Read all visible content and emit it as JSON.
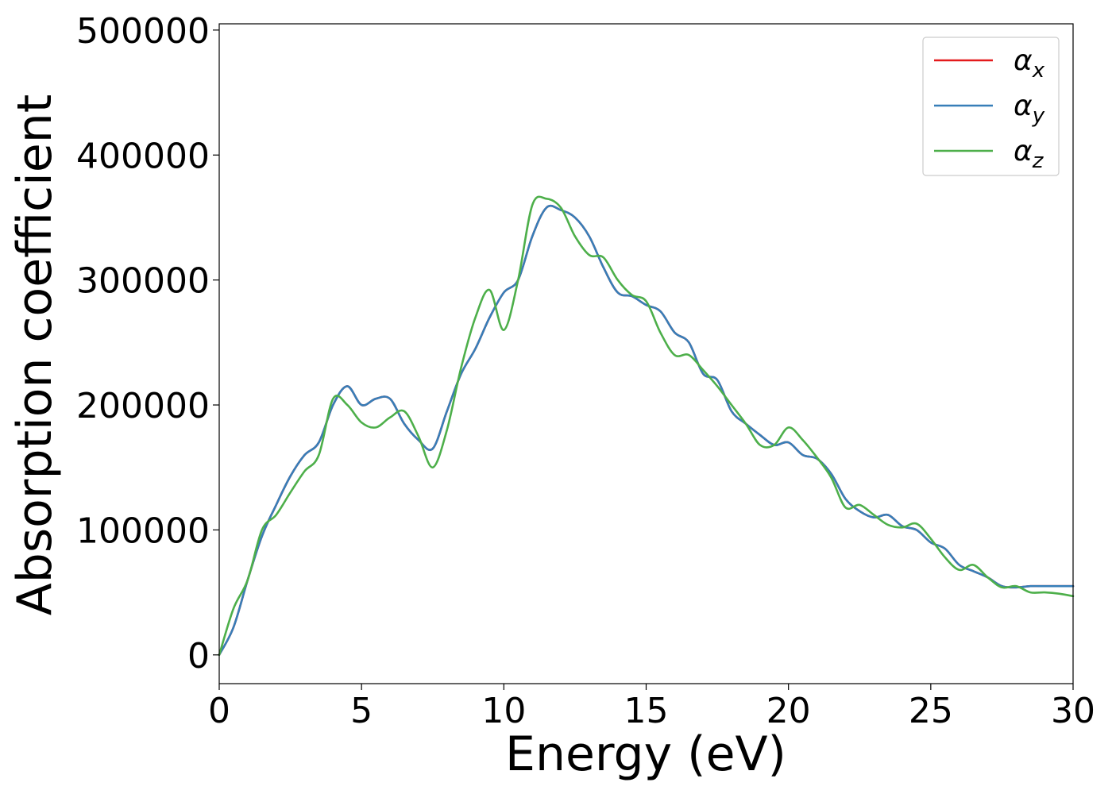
{
  "chart_data": {
    "type": "line",
    "xlabel": "Energy (eV)",
    "ylabel": "Absorption coefficient",
    "xlim": [
      0,
      30
    ],
    "ylim": [
      -23000,
      505000
    ],
    "xticks": [
      0,
      5,
      10,
      15,
      20,
      25,
      30
    ],
    "xtick_labels": [
      "0",
      "5",
      "10",
      "15",
      "20",
      "25",
      "30"
    ],
    "yticks": [
      0,
      100000,
      200000,
      300000,
      400000,
      500000
    ],
    "ytick_labels": [
      "0",
      "100000",
      "200000",
      "300000",
      "400000",
      "500000"
    ],
    "grid": false,
    "legend_position": "top-right",
    "x": [
      0,
      0.5,
      1,
      1.5,
      2,
      2.5,
      3,
      3.5,
      4,
      4.5,
      5,
      5.5,
      6,
      6.5,
      7,
      7.5,
      8,
      8.5,
      9,
      9.5,
      10,
      10.5,
      11,
      11.5,
      12,
      12.5,
      13,
      13.5,
      14,
      14.5,
      15,
      15.5,
      16,
      16.5,
      17,
      17.5,
      18,
      18.5,
      19,
      19.5,
      20,
      20.5,
      21,
      21.5,
      22,
      22.5,
      23,
      23.5,
      24,
      24.5,
      25,
      25.5,
      26,
      26.5,
      27,
      27.5,
      28,
      28.5,
      29,
      29.5,
      30
    ],
    "series": [
      {
        "name": "α",
        "name_sub": "x",
        "color": "#e41a1c",
        "values": [
          0,
          22000,
          60000,
          95000,
          120000,
          143000,
          160000,
          170000,
          200000,
          215000,
          200000,
          205000,
          205000,
          185000,
          172000,
          165000,
          195000,
          225000,
          245000,
          270000,
          290000,
          300000,
          335000,
          358000,
          356000,
          350000,
          335000,
          310000,
          290000,
          287000,
          280000,
          275000,
          258000,
          250000,
          225000,
          220000,
          195000,
          185000,
          176000,
          168000,
          170000,
          160000,
          157000,
          145000,
          125000,
          115000,
          110000,
          112000,
          103000,
          100000,
          90000,
          85000,
          72000,
          67000,
          62000,
          55000,
          54000,
          55000,
          55000,
          55000,
          55000
        ]
      },
      {
        "name": "α",
        "name_sub": "y",
        "color": "#377eb8",
        "values": [
          0,
          22000,
          60000,
          95000,
          120000,
          143000,
          160000,
          170000,
          200000,
          215000,
          200000,
          205000,
          205000,
          185000,
          172000,
          165000,
          195000,
          225000,
          245000,
          270000,
          290000,
          300000,
          335000,
          358000,
          356000,
          350000,
          335000,
          310000,
          290000,
          287000,
          280000,
          275000,
          258000,
          250000,
          225000,
          220000,
          195000,
          185000,
          176000,
          168000,
          170000,
          160000,
          157000,
          145000,
          125000,
          115000,
          110000,
          112000,
          103000,
          100000,
          90000,
          85000,
          72000,
          67000,
          62000,
          55000,
          54000,
          55000,
          55000,
          55000,
          55000
        ]
      },
      {
        "name": "α",
        "name_sub": "z",
        "color": "#4daf4a",
        "values": [
          0,
          37000,
          60000,
          100000,
          112000,
          130000,
          147000,
          160000,
          205000,
          200000,
          186000,
          182000,
          190000,
          195000,
          175000,
          150000,
          180000,
          230000,
          270000,
          292000,
          260000,
          300000,
          360000,
          365000,
          358000,
          335000,
          320000,
          318000,
          300000,
          288000,
          283000,
          258000,
          240000,
          240000,
          228000,
          215000,
          200000,
          185000,
          168000,
          168000,
          182000,
          172000,
          158000,
          142000,
          118000,
          120000,
          112000,
          104000,
          102000,
          105000,
          93000,
          78000,
          68000,
          72000,
          62000,
          54000,
          55000,
          50000,
          50000,
          49000,
          47000
        ]
      }
    ]
  }
}
